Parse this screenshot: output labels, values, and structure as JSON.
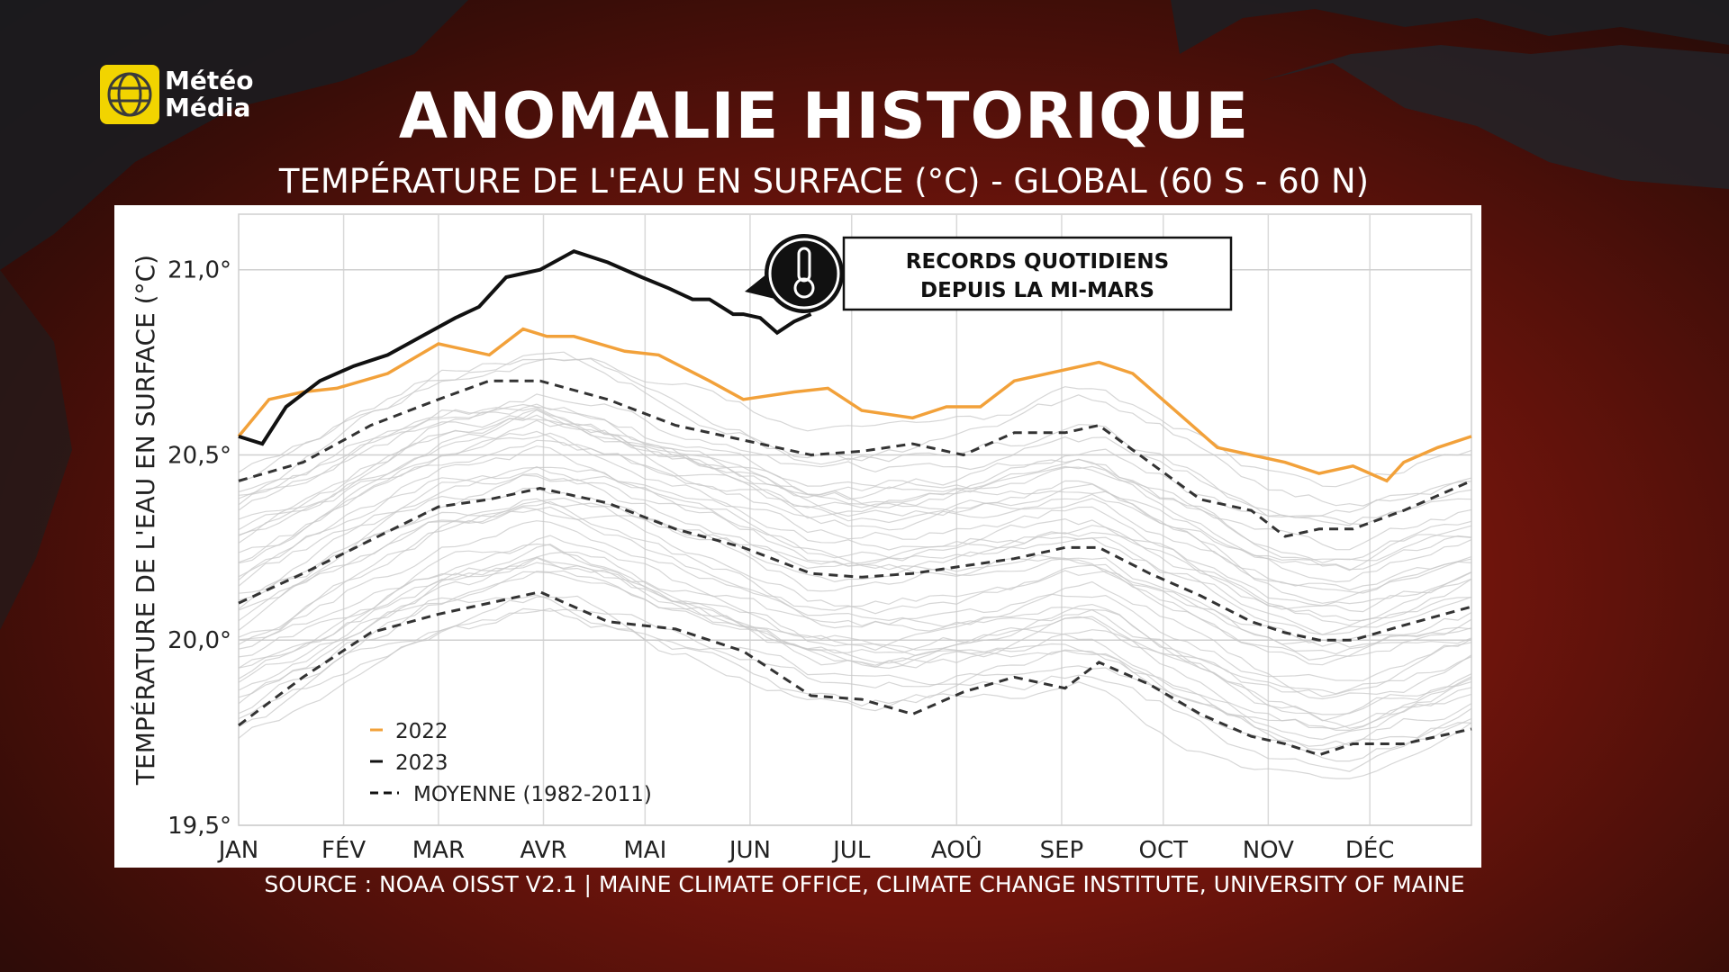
{
  "brand": {
    "logo_line1": "Météo",
    "logo_line2": "Média"
  },
  "header": {
    "title": "ANOMALIE HISTORIQUE",
    "subtitle": "TEMPÉRATURE DE L'EAU EN SURFACE (°C) - GLOBAL (60 S - 60 N)"
  },
  "footer": {
    "source": "SOURCE : NOAA OISST V2.1 | MAINE CLIMATE OFFICE, CLIMATE CHANGE INSTITUTE, UNIVERSITY OF MAINE"
  },
  "colors": {
    "accent_2022": "#f2a13a",
    "line_2023": "#111111",
    "mean": "#333333",
    "history": "#c8c8c8",
    "logo_yellow": "#f2d400"
  },
  "chart_data": {
    "type": "line",
    "ylabel": "TEMPÉRATURE DE L'EAU EN SURFACE (°C)",
    "xlabel": "",
    "ylim": [
      19.5,
      21.15
    ],
    "yticks": [
      21.0,
      20.5,
      20.0,
      19.5
    ],
    "ytick_labels": [
      "21,0°",
      "20,5°",
      "20,0°",
      "19,5°"
    ],
    "months": [
      "JAN",
      "FÉV",
      "MAR",
      "AVR",
      "MAI",
      "JUN",
      "JUL",
      "AOÛ",
      "SEP",
      "OCT",
      "NOV",
      "DÉC"
    ],
    "annotation": {
      "line1": "RECORDS QUOTIDIENS",
      "line2": "DEPUIS LA MI-MARS",
      "icon": "thermometer-icon"
    },
    "legend": [
      {
        "label": "2022",
        "style": "solid-orange"
      },
      {
        "label": "2023",
        "style": "solid-black"
      },
      {
        "label": "MOYENNE (1982-2011)",
        "style": "dashed"
      }
    ],
    "grid": true,
    "series": [
      {
        "name": "2022",
        "color": "#f2a13a",
        "x": [
          1,
          10,
          20,
          30,
          45,
          60,
          75,
          85,
          92,
          100,
          115,
          125,
          140,
          150,
          165,
          175,
          185,
          200,
          210,
          220,
          230,
          245,
          255,
          265,
          280,
          290,
          300,
          310,
          320,
          330,
          340,
          345,
          355,
          365
        ],
        "y": [
          20.55,
          20.65,
          20.67,
          20.68,
          20.72,
          20.8,
          20.77,
          20.84,
          20.82,
          20.82,
          20.78,
          20.77,
          20.7,
          20.65,
          20.67,
          20.68,
          20.62,
          20.6,
          20.63,
          20.63,
          20.7,
          20.73,
          20.75,
          20.72,
          20.6,
          20.52,
          20.5,
          20.48,
          20.45,
          20.47,
          20.43,
          20.48,
          20.52,
          20.55
        ]
      },
      {
        "name": "2023",
        "color": "#111111",
        "x": [
          1,
          8,
          15,
          25,
          35,
          45,
          55,
          65,
          72,
          80,
          90,
          100,
          110,
          120,
          128,
          135,
          140,
          147,
          150,
          155,
          160,
          165,
          170
        ],
        "y": [
          20.55,
          20.53,
          20.63,
          20.7,
          20.74,
          20.77,
          20.82,
          20.87,
          20.9,
          20.98,
          21.0,
          21.05,
          21.02,
          20.98,
          20.95,
          20.92,
          20.92,
          20.88,
          20.88,
          20.87,
          20.83,
          20.86,
          20.88
        ]
      },
      {
        "name": "",
        "style": "dashed",
        "color": "#333333",
        "x": [
          1,
          20,
          40,
          60,
          75,
          90,
          110,
          130,
          150,
          170,
          185,
          200,
          215,
          230,
          245,
          255,
          270,
          285,
          300,
          310,
          320,
          330,
          345,
          365
        ],
        "y": [
          20.43,
          20.48,
          20.58,
          20.65,
          20.7,
          20.7,
          20.65,
          20.58,
          20.54,
          20.5,
          20.51,
          20.53,
          20.5,
          20.56,
          20.56,
          20.58,
          20.48,
          20.38,
          20.35,
          20.28,
          20.3,
          20.3,
          20.35,
          20.43
        ]
      },
      {
        "name": "",
        "style": "dashed",
        "color": "#333333",
        "x": [
          1,
          20,
          40,
          60,
          75,
          90,
          110,
          130,
          150,
          170,
          185,
          200,
          215,
          230,
          245,
          255,
          270,
          285,
          300,
          310,
          320,
          330,
          345,
          365
        ],
        "y": [
          20.1,
          20.18,
          20.27,
          20.36,
          20.38,
          20.41,
          20.37,
          20.3,
          20.25,
          20.18,
          20.17,
          20.18,
          20.2,
          20.22,
          20.25,
          20.25,
          20.18,
          20.12,
          20.05,
          20.02,
          20.0,
          20.0,
          20.04,
          20.09
        ]
      },
      {
        "name": "",
        "style": "dashed",
        "color": "#333333",
        "x": [
          1,
          20,
          40,
          60,
          75,
          90,
          110,
          130,
          150,
          170,
          185,
          200,
          215,
          230,
          245,
          255,
          270,
          285,
          300,
          310,
          320,
          330,
          345,
          365
        ],
        "y": [
          19.77,
          19.9,
          20.02,
          20.07,
          20.1,
          20.13,
          20.05,
          20.03,
          19.97,
          19.85,
          19.84,
          19.8,
          19.86,
          19.9,
          19.87,
          19.94,
          19.88,
          19.8,
          19.74,
          19.72,
          19.69,
          19.72,
          19.72,
          19.76
        ]
      }
    ]
  }
}
